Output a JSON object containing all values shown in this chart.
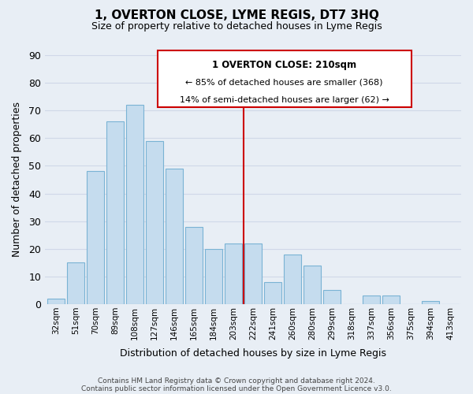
{
  "title": "1, OVERTON CLOSE, LYME REGIS, DT7 3HQ",
  "subtitle": "Size of property relative to detached houses in Lyme Regis",
  "xlabel": "Distribution of detached houses by size in Lyme Regis",
  "ylabel": "Number of detached properties",
  "categories": [
    "32sqm",
    "51sqm",
    "70sqm",
    "89sqm",
    "108sqm",
    "127sqm",
    "146sqm",
    "165sqm",
    "184sqm",
    "203sqm",
    "222sqm",
    "241sqm",
    "260sqm",
    "280sqm",
    "299sqm",
    "318sqm",
    "337sqm",
    "356sqm",
    "375sqm",
    "394sqm",
    "413sqm"
  ],
  "values": [
    2,
    15,
    48,
    66,
    72,
    59,
    49,
    28,
    20,
    22,
    22,
    8,
    18,
    14,
    5,
    0,
    3,
    3,
    0,
    1,
    0
  ],
  "bar_color": "#c5dcee",
  "bar_edge_color": "#7ab3d4",
  "grid_color": "#d0d8e8",
  "vline_x": 9.5,
  "vline_color": "#cc0000",
  "annotation_title": "1 OVERTON CLOSE: 210sqm",
  "annotation_line1": "← 85% of detached houses are smaller (368)",
  "annotation_line2": "14% of semi-detached houses are larger (62) →",
  "annotation_box_color": "#ffffff",
  "annotation_box_edge": "#cc0000",
  "ylim": [
    0,
    90
  ],
  "yticks": [
    0,
    10,
    20,
    30,
    40,
    50,
    60,
    70,
    80,
    90
  ],
  "footer1": "Contains HM Land Registry data © Crown copyright and database right 2024.",
  "footer2": "Contains public sector information licensed under the Open Government Licence v3.0.",
  "bg_color": "#e8eef5"
}
